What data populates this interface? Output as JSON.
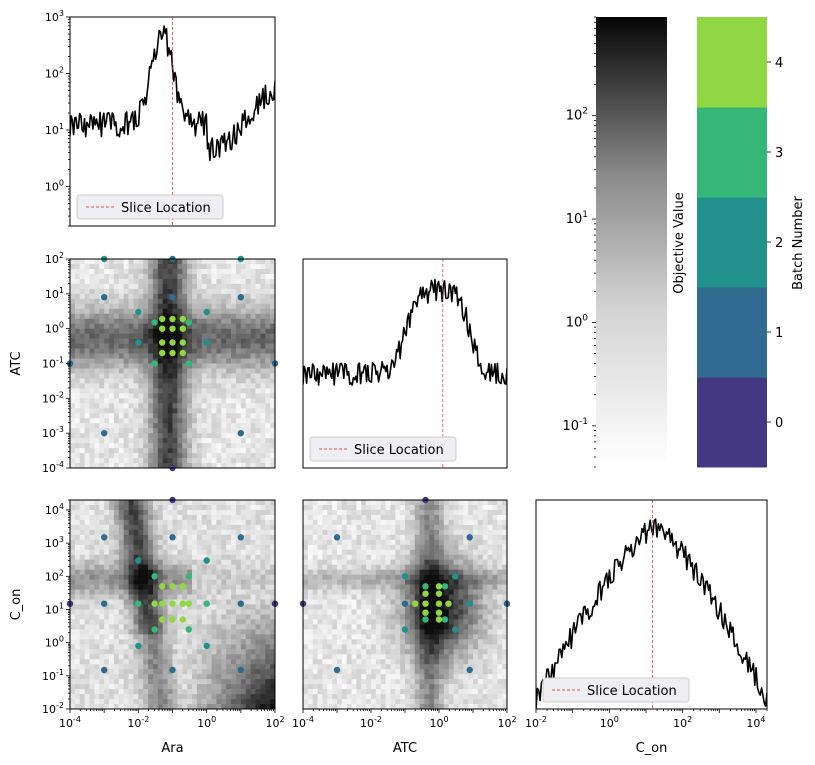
{
  "figure": {
    "legend_label": "Slice Location",
    "objective_label": "Objective Value",
    "batch_label": "Batch Number"
  },
  "colors": {
    "line": "#000000",
    "slice": "#d62728",
    "batches": [
      "#453882",
      "#2e6b8e",
      "#21918c",
      "#35b779",
      "#90d743"
    ],
    "heatmap_dark": "#0a0a0a",
    "heatmap_light": "#ffffff"
  },
  "chart_data": [
    {
      "id": "ara-1d",
      "type": "line",
      "xscale": "log",
      "yscale": "log",
      "xlim": [
        0.0001,
        100
      ],
      "ylim": [
        0.2,
        1000
      ],
      "ytick_exponents": [
        0,
        1,
        2,
        3
      ],
      "xticks_shown": false,
      "slice_x": 0.1,
      "legend": "lower-left",
      "profile": {
        "kind": "peak",
        "center_log": -1.3,
        "peak_log": 2.7,
        "base_log": 1.1,
        "width": 0.45,
        "rise_right": true
      }
    },
    {
      "id": "atc-ara",
      "type": "heatmap",
      "xscale": "log",
      "yscale": "log",
      "xlabel": "",
      "ylabel": "ATC",
      "xlim": [
        0.0001,
        100
      ],
      "ylim": [
        0.0001,
        100
      ],
      "ytick_exponents": [
        -4,
        -3,
        -2,
        -1,
        0,
        1,
        2
      ],
      "dark_ridges": {
        "x_log": -1.0,
        "y_log": -0.3
      },
      "points": [
        {
          "x": 0.1,
          "y": 100,
          "batch": 1
        },
        {
          "x": 0.001,
          "y": 100,
          "batch": 2
        },
        {
          "x": 10,
          "y": 100,
          "batch": 2
        },
        {
          "x": 0.0001,
          "y": 0.1,
          "batch": 1
        },
        {
          "x": 100,
          "y": 0.1,
          "batch": 1
        },
        {
          "x": 0.001,
          "y": 0.001,
          "batch": 1
        },
        {
          "x": 10,
          "y": 0.001,
          "batch": 1
        },
        {
          "x": 0.001,
          "y": 8,
          "batch": 1
        },
        {
          "x": 10,
          "y": 8,
          "batch": 1
        },
        {
          "x": 0.1,
          "y": 0.0001,
          "batch": 0
        },
        {
          "x": 0.1,
          "y": 8,
          "batch": 1
        },
        {
          "x": 0.01,
          "y": 3,
          "batch": 2
        },
        {
          "x": 1,
          "y": 3,
          "batch": 2
        },
        {
          "x": 0.01,
          "y": 0.4,
          "batch": 2
        },
        {
          "x": 1,
          "y": 0.4,
          "batch": 2
        },
        {
          "x": 0.03,
          "y": 0.1,
          "batch": 3
        },
        {
          "x": 0.3,
          "y": 0.1,
          "batch": 3
        },
        {
          "x": 0.03,
          "y": 1.5,
          "batch": 3
        },
        {
          "x": 0.3,
          "y": 1.5,
          "batch": 3
        },
        {
          "x": 0.05,
          "y": 0.4,
          "batch": 4
        },
        {
          "x": 0.1,
          "y": 0.4,
          "batch": 4
        },
        {
          "x": 0.2,
          "y": 0.4,
          "batch": 4
        },
        {
          "x": 0.05,
          "y": 1.0,
          "batch": 4
        },
        {
          "x": 0.1,
          "y": 1.0,
          "batch": 4
        },
        {
          "x": 0.2,
          "y": 1.0,
          "batch": 4
        },
        {
          "x": 0.05,
          "y": 0.2,
          "batch": 4
        },
        {
          "x": 0.1,
          "y": 0.2,
          "batch": 4
        },
        {
          "x": 0.2,
          "y": 0.2,
          "batch": 4
        },
        {
          "x": 0.05,
          "y": 1.9,
          "batch": 4
        },
        {
          "x": 0.2,
          "y": 1.9,
          "batch": 4
        },
        {
          "x": 0.1,
          "y": 1.9,
          "batch": 4
        }
      ]
    },
    {
      "id": "atc-1d",
      "type": "line",
      "xscale": "log",
      "yscale": "log",
      "xlim": [
        0.0001,
        100
      ],
      "yticks_shown": false,
      "xticks_shown": false,
      "slice_x": 1.3,
      "legend": "lower-left",
      "profile": {
        "kind": "plateau",
        "center_log": 0.0,
        "high": 0.85,
        "low": 0.45,
        "width": 1.2
      }
    },
    {
      "id": "con-ara",
      "type": "heatmap",
      "xscale": "log",
      "yscale": "log",
      "xlabel": "Ara",
      "ylabel": "C_on",
      "xlim": [
        0.0001,
        100
      ],
      "ylim": [
        0.01,
        20000
      ],
      "ytick_exponents": [
        -2,
        -1,
        0,
        1,
        2,
        3,
        4
      ],
      "xtick_exponents": [
        -4,
        -2,
        0,
        2
      ],
      "points": [
        {
          "x": 0.1,
          "y": 20000,
          "batch": 0
        },
        {
          "x": 0.0001,
          "y": 15,
          "batch": 0
        },
        {
          "x": 100,
          "y": 15,
          "batch": 0
        },
        {
          "x": 0.001,
          "y": 1500,
          "batch": 1
        },
        {
          "x": 10,
          "y": 1500,
          "batch": 1
        },
        {
          "x": 0.001,
          "y": 0.15,
          "batch": 1
        },
        {
          "x": 10,
          "y": 0.15,
          "batch": 1
        },
        {
          "x": 0.1,
          "y": 1500,
          "batch": 1
        },
        {
          "x": 0.1,
          "y": 0.15,
          "batch": 1
        },
        {
          "x": 0.001,
          "y": 15,
          "batch": 1
        },
        {
          "x": 10,
          "y": 15,
          "batch": 1
        },
        {
          "x": 0.01,
          "y": 300,
          "batch": 2
        },
        {
          "x": 1,
          "y": 300,
          "batch": 2
        },
        {
          "x": 0.01,
          "y": 0.8,
          "batch": 2
        },
        {
          "x": 1,
          "y": 0.8,
          "batch": 2
        },
        {
          "x": 0.03,
          "y": 100,
          "batch": 3
        },
        {
          "x": 0.3,
          "y": 100,
          "batch": 3
        },
        {
          "x": 0.03,
          "y": 2.5,
          "batch": 3
        },
        {
          "x": 0.3,
          "y": 2.5,
          "batch": 3
        },
        {
          "x": 0.01,
          "y": 15,
          "batch": 3
        },
        {
          "x": 1,
          "y": 15,
          "batch": 3
        },
        {
          "x": 0.05,
          "y": 50,
          "batch": 4
        },
        {
          "x": 0.1,
          "y": 50,
          "batch": 4
        },
        {
          "x": 0.2,
          "y": 50,
          "batch": 4
        },
        {
          "x": 0.05,
          "y": 15,
          "batch": 4
        },
        {
          "x": 0.1,
          "y": 15,
          "batch": 4
        },
        {
          "x": 0.2,
          "y": 15,
          "batch": 4
        },
        {
          "x": 0.05,
          "y": 5,
          "batch": 4
        },
        {
          "x": 0.1,
          "y": 5,
          "batch": 4
        },
        {
          "x": 0.2,
          "y": 5,
          "batch": 4
        },
        {
          "x": 0.03,
          "y": 15,
          "batch": 4
        },
        {
          "x": 0.3,
          "y": 15,
          "batch": 4
        }
      ]
    },
    {
      "id": "con-atc",
      "type": "heatmap",
      "xscale": "log",
      "yscale": "log",
      "xlabel": "ATC",
      "xlim": [
        0.0001,
        100
      ],
      "ylim": [
        0.01,
        20000
      ],
      "xtick_exponents": [
        -4,
        -2,
        0,
        2
      ],
      "points": [
        {
          "x": 0.4,
          "y": 20000,
          "batch": 0
        },
        {
          "x": 0.0001,
          "y": 15,
          "batch": 0
        },
        {
          "x": 100,
          "y": 15,
          "batch": 1
        },
        {
          "x": 0.001,
          "y": 1500,
          "batch": 1
        },
        {
          "x": 8,
          "y": 1500,
          "batch": 1
        },
        {
          "x": 0.001,
          "y": 0.15,
          "batch": 1
        },
        {
          "x": 8,
          "y": 0.15,
          "batch": 1
        },
        {
          "x": 0.1,
          "y": 15,
          "batch": 1
        },
        {
          "x": 8,
          "y": 15,
          "batch": 2
        },
        {
          "x": 0.1,
          "y": 100,
          "batch": 2
        },
        {
          "x": 3,
          "y": 100,
          "batch": 2
        },
        {
          "x": 0.1,
          "y": 2.5,
          "batch": 2
        },
        {
          "x": 3,
          "y": 2.5,
          "batch": 2
        },
        {
          "x": 0.4,
          "y": 50,
          "batch": 3
        },
        {
          "x": 1.5,
          "y": 50,
          "batch": 3
        },
        {
          "x": 0.4,
          "y": 5,
          "batch": 3
        },
        {
          "x": 1.5,
          "y": 5,
          "batch": 3
        },
        {
          "x": 0.2,
          "y": 15,
          "batch": 4
        },
        {
          "x": 0.4,
          "y": 15,
          "batch": 4
        },
        {
          "x": 1.0,
          "y": 15,
          "batch": 4
        },
        {
          "x": 1.9,
          "y": 15,
          "batch": 4
        },
        {
          "x": 0.4,
          "y": 30,
          "batch": 4
        },
        {
          "x": 1.0,
          "y": 30,
          "batch": 4
        },
        {
          "x": 0.4,
          "y": 8,
          "batch": 4
        },
        {
          "x": 1.0,
          "y": 8,
          "batch": 4
        },
        {
          "x": 1.0,
          "y": 50,
          "batch": 4
        },
        {
          "x": 1.0,
          "y": 5,
          "batch": 4
        }
      ]
    },
    {
      "id": "con-1d",
      "type": "line",
      "xscale": "log",
      "yscale": "log",
      "xlabel": "C_on",
      "xlim": [
        0.01,
        20000
      ],
      "xtick_exponents": [
        -2,
        0,
        2,
        4
      ],
      "yticks_shown": false,
      "slice_x": 15,
      "legend": "lower-left",
      "profile": {
        "kind": "tent",
        "center_log": 1.2,
        "top": 0.88,
        "bottom": 0.05
      }
    },
    {
      "id": "objective-colorbar",
      "type": "colorbar",
      "scale": "log",
      "label": "Objective Value",
      "range": [
        0.04,
        900
      ],
      "tick_exponents": [
        -1,
        0,
        1,
        2
      ]
    },
    {
      "id": "batch-colorbar",
      "type": "colorbar",
      "scale": "categorical",
      "label": "Batch Number",
      "categories": [
        "0",
        "1",
        "2",
        "3",
        "4"
      ]
    }
  ]
}
